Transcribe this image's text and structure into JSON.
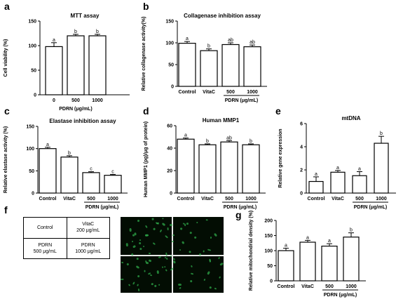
{
  "panels": [
    {
      "letter": "a",
      "chart_data": {
        "type": "bar",
        "title": "MTT assay",
        "ylabel": "Cell viability (%)",
        "categories": [
          "0",
          "500",
          "1000"
        ],
        "values": [
          98,
          120,
          120
        ],
        "errors": [
          8,
          3,
          3
        ],
        "sig_letters": [
          "a",
          "b",
          "b"
        ],
        "ylim": [
          0,
          150
        ],
        "yticks": [
          0,
          50,
          100,
          150
        ],
        "group_label": "PDRN (μg/mL)",
        "group_span": [
          0,
          2
        ]
      }
    },
    {
      "letter": "b",
      "chart_data": {
        "type": "bar",
        "title": "Collagenase inhibition assay",
        "ylabel": "Relative collagenase activity(%)",
        "categories": [
          "Control",
          "VitaC",
          "500",
          "1000"
        ],
        "values": [
          99,
          82,
          96,
          91
        ],
        "errors": [
          4,
          4,
          4,
          4
        ],
        "sig_letters": [
          "a",
          "b",
          "ab",
          "ab"
        ],
        "ylim": [
          0,
          150
        ],
        "yticks": [
          0,
          50,
          100,
          150
        ],
        "group_label": "PDRN (μg/mL)",
        "group_span": [
          2,
          3
        ]
      }
    },
    {
      "letter": "c",
      "chart_data": {
        "type": "bar",
        "title": "Elastase inhibition assay",
        "ylabel": "Relative elastase activity (%)",
        "categories": [
          "Control",
          "VitaC",
          "500",
          "1000"
        ],
        "values": [
          100,
          81,
          46,
          40
        ],
        "errors": [
          3,
          3,
          2,
          2
        ],
        "sig_letters": [
          "a",
          "b",
          "c",
          "c"
        ],
        "ylim": [
          0,
          150
        ],
        "yticks": [
          0,
          50,
          100,
          150
        ],
        "group_label": "PDRN (μg/mL)",
        "group_span": [
          2,
          3
        ]
      }
    },
    {
      "letter": "d",
      "chart_data": {
        "type": "bar",
        "title": "Human MMP1",
        "ylabel": "Human MMP1 (pg)/μg of protein)",
        "categories": [
          "Control",
          "VitaC",
          "500",
          "1000"
        ],
        "values": [
          48,
          43,
          45.5,
          43
        ],
        "errors": [
          1,
          0.8,
          1.2,
          0.8
        ],
        "sig_letters": [
          "a",
          "b",
          "ab",
          "b"
        ],
        "ylim": [
          0,
          60
        ],
        "yticks": [
          0,
          20,
          40,
          60
        ],
        "group_label": "PDRN (μg/mL)",
        "group_span": [
          2,
          3
        ]
      }
    },
    {
      "letter": "e",
      "chart_data": {
        "type": "bar",
        "title": "mtDNA",
        "ylabel": "Relative gene expression",
        "categories": [
          "Control",
          "VitaC",
          "500",
          "1000"
        ],
        "values": [
          1.0,
          1.8,
          1.5,
          4.3
        ],
        "errors": [
          0.4,
          0.15,
          0.35,
          0.6
        ],
        "sig_letters": [
          "a",
          "a",
          "a",
          "b"
        ],
        "ylim": [
          0,
          6
        ],
        "yticks": [
          0,
          2,
          4,
          6
        ],
        "group_label": "PDRN (μg/mL)",
        "group_span": [
          2,
          3
        ]
      }
    },
    {
      "letter": "g",
      "chart_data": {
        "type": "bar",
        "title": "",
        "ylabel": "Relative mitochondrial density (%)",
        "categories": [
          "Control",
          "VitaC",
          "500",
          "1000"
        ],
        "values": [
          100,
          128,
          115,
          145
        ],
        "errors": [
          8,
          6,
          8,
          14
        ],
        "sig_letters": [
          "a",
          "a",
          "a",
          "b"
        ],
        "ylim": [
          0,
          200
        ],
        "yticks": [
          0,
          50,
          100,
          150,
          200
        ],
        "group_label": "PDRN (μg/mL)",
        "group_span": [
          2,
          3
        ]
      }
    }
  ],
  "panel_f": {
    "letter": "f",
    "table": [
      [
        "Control",
        "VitaC\n200 μg/mL"
      ],
      [
        "PDRN\n500 μg/mL",
        "PDRN\n1000 μg/mL"
      ]
    ]
  }
}
